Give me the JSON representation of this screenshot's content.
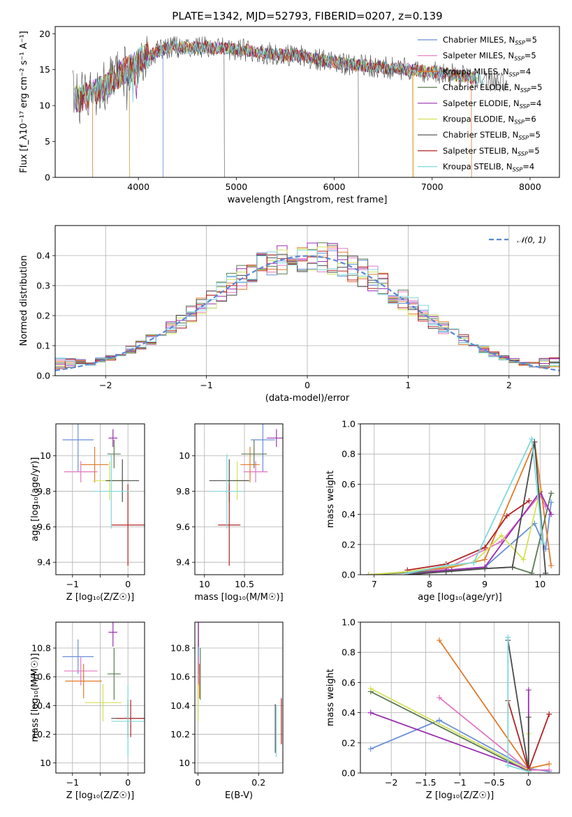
{
  "palette": [
    "#6a8fd8",
    "#e377c2",
    "#e07b2c",
    "#5a7a52",
    "#9a2fb0",
    "#d4e157",
    "#4a4a4a",
    "#b22222",
    "#80d8dc"
  ],
  "chart_data": [
    {
      "id": "spectrum",
      "type": "line",
      "title": "PLATE=1342, MJD=52793, FIBERID=0207, z=0.139",
      "xlabel": "wavelength [Angstrom, rest frame]",
      "ylabel": "Flux [f_λ10⁻¹⁷ erg cm⁻² s⁻¹ A⁻¹]",
      "xlim": [
        3150,
        8300
      ],
      "ylim": [
        0,
        21
      ],
      "xticks": [
        4000,
        5000,
        6000,
        7000,
        8000
      ],
      "yticks": [
        0,
        5,
        10,
        15,
        20
      ],
      "grid": false,
      "legend_position": "top-right",
      "envelope": {
        "x": [
          3350,
          3450,
          3550,
          3650,
          3750,
          3850,
          3950,
          4050,
          4150,
          4250,
          4350,
          4500,
          4700,
          4900,
          5100,
          5300,
          5500,
          5700,
          5900,
          6100,
          6300,
          6500,
          6700,
          6900,
          7100,
          7300,
          7500,
          7700,
          7900,
          8050
        ],
        "y": [
          10.8,
          11.2,
          11.8,
          12.5,
          13.8,
          14.8,
          15.5,
          16.6,
          17.2,
          17.8,
          18.3,
          18.0,
          18.1,
          17.9,
          17.7,
          17.3,
          17.0,
          16.8,
          16.2,
          15.8,
          15.6,
          15.3,
          15.1,
          14.8,
          14.5,
          14.1,
          13.7,
          13.2,
          12.8,
          12.4
        ]
      },
      "series": [
        {
          "name": "Chabrier MILES, N_SSP=5"
        },
        {
          "name": "Salpeter MILES, N_SSP=5"
        },
        {
          "name": "Kroupa MILES, N_SSP=4"
        },
        {
          "name": "Chabrier ELODIE, N_SSP=5"
        },
        {
          "name": "Salpeter ELODIE, N_SSP=4"
        },
        {
          "name": "Kroupa ELODIE, N_SSP=6"
        },
        {
          "name": "Chabrier STELIB, N_SSP=5"
        },
        {
          "name": "Salpeter STELIB, N_SSP=5"
        },
        {
          "name": "Kroupa STELIB, N_SSP=4"
        }
      ]
    },
    {
      "id": "residuals",
      "type": "line",
      "xlabel": "(data-model)/error",
      "ylabel": "Normed distribution",
      "xlim": [
        -2.5,
        2.5
      ],
      "ylim": [
        0,
        0.5
      ],
      "xticks": [
        -2,
        -1,
        0,
        1,
        2
      ],
      "yticks": [
        0.0,
        0.1,
        0.2,
        0.3,
        0.4
      ],
      "grid": true,
      "legend_position": "top-right",
      "legend_label": "𝒩(0, 1)",
      "bin_width": 0.1
    },
    {
      "id": "age_vs_Z",
      "type": "scatter",
      "xlabel": "Z [log₁₀(Z/Z☉)]",
      "ylabel": "age  [log₁₀(age/yr)]",
      "xlim": [
        -1.3,
        0.3
      ],
      "ylim": [
        9.33,
        10.18
      ],
      "xticks": [
        -1,
        -0.5,
        0
      ],
      "xticklabels": [
        "−1",
        "",
        "0"
      ],
      "yticks": [
        9.4,
        9.6,
        9.8,
        10.0
      ],
      "grid": true,
      "points": [
        {
          "x": -0.9,
          "xerr": 0.28,
          "y": 10.09,
          "yerr": 0.18
        },
        {
          "x": -0.85,
          "xerr": 0.3,
          "y": 9.91,
          "yerr": 0.06
        },
        {
          "x": -0.6,
          "xerr": 0.25,
          "y": 9.95,
          "yerr": 0.1
        },
        {
          "x": -0.25,
          "xerr": 0.12,
          "y": 10.01,
          "yerr": 0.08
        },
        {
          "x": -0.27,
          "xerr": 0.08,
          "y": 10.1,
          "yerr": 0.05
        },
        {
          "x": -0.33,
          "xerr": 0.3,
          "y": 9.86,
          "yerr": 0.11
        },
        {
          "x": -0.1,
          "xerr": 0.3,
          "y": 9.86,
          "yerr": 0.12
        },
        {
          "x": 0.0,
          "xerr": 0.3,
          "y": 9.61,
          "yerr": 0.23
        },
        {
          "x": -0.3,
          "xerr": 0.33,
          "y": 9.8,
          "yerr": 0.21
        }
      ]
    },
    {
      "id": "age_vs_mass",
      "type": "scatter",
      "xlabel": "mass [log₁₀(M/M☉)]",
      "xlim": [
        9.88,
        10.98
      ],
      "ylim": [
        9.33,
        10.18
      ],
      "xticks": [
        10.0,
        10.5
      ],
      "yticks": [
        9.4,
        9.6,
        9.8,
        10.0
      ],
      "grid": true,
      "points": [
        {
          "x": 10.73,
          "xerr": 0.15,
          "y": 10.09,
          "yerr": 0.18
        },
        {
          "x": 10.64,
          "xerr": 0.15,
          "y": 9.91,
          "yerr": 0.06
        },
        {
          "x": 10.57,
          "xerr": 0.12,
          "y": 9.95,
          "yerr": 0.1
        },
        {
          "x": 10.62,
          "xerr": 0.16,
          "y": 10.01,
          "yerr": 0.08
        },
        {
          "x": 10.9,
          "xerr": 0.12,
          "y": 10.1,
          "yerr": 0.05
        },
        {
          "x": 10.41,
          "xerr": 0.14,
          "y": 9.86,
          "yerr": 0.11
        },
        {
          "x": 10.31,
          "xerr": 0.25,
          "y": 9.86,
          "yerr": 0.12
        },
        {
          "x": 10.31,
          "xerr": 0.14,
          "y": 9.61,
          "yerr": 0.23
        },
        {
          "x": 10.28,
          "xerr": 0.2,
          "y": 9.8,
          "yerr": 0.21
        }
      ]
    },
    {
      "id": "weight_vs_age",
      "type": "line",
      "xlabel": "age  [log₁₀(age/yr)]",
      "ylabel": "mass weight",
      "xlim": [
        6.75,
        10.35
      ],
      "ylim": [
        0,
        1.0
      ],
      "xticks": [
        7,
        8,
        9,
        10
      ],
      "yticks": [
        0.0,
        0.2,
        0.4,
        0.6,
        0.8,
        1.0
      ],
      "grid": true,
      "series": [
        {
          "x": [
            7.6,
            9.0,
            9.9,
            10.1,
            10.2
          ],
          "y": [
            0.01,
            0.05,
            0.34,
            0.17,
            0.48
          ]
        },
        {
          "x": [
            6.9,
            8.3,
            9.3,
            10.0,
            10.1
          ],
          "y": [
            0.0,
            0.04,
            0.22,
            0.53,
            0.45
          ]
        },
        {
          "x": [
            7.6,
            8.4,
            9.0,
            9.9,
            10.2
          ],
          "y": [
            0.02,
            0.05,
            0.1,
            0.88,
            0.06
          ]
        },
        {
          "x": [
            6.9,
            8.4,
            9.5,
            9.85,
            10.2
          ],
          "y": [
            0.0,
            0.03,
            0.05,
            0.01,
            0.54
          ]
        },
        {
          "x": [
            7.6,
            8.3,
            9.0,
            10.0,
            10.2
          ],
          "y": [
            0.0,
            0.03,
            0.05,
            0.55,
            0.4
          ]
        },
        {
          "x": [
            6.9,
            7.6,
            8.8,
            9.3,
            9.7,
            10.0
          ],
          "y": [
            0.0,
            0.02,
            0.08,
            0.26,
            0.1,
            0.56
          ]
        },
        {
          "x": [
            7.6,
            8.3,
            9.0,
            9.5,
            9.9,
            10.1
          ],
          "y": [
            0.0,
            0.02,
            0.04,
            0.05,
            0.88,
            0.01
          ]
        },
        {
          "x": [
            7.6,
            8.3,
            9.0,
            9.4,
            9.8
          ],
          "y": [
            0.03,
            0.07,
            0.18,
            0.39,
            0.49
          ]
        },
        {
          "x": [
            7.6,
            8.3,
            8.8,
            9.85,
            10.05
          ],
          "y": [
            0.01,
            0.06,
            0.08,
            0.9,
            0.21
          ]
        }
      ]
    },
    {
      "id": "mass_vs_Z",
      "type": "scatter",
      "xlabel": "Z [log₁₀(Z/Z☉)]",
      "ylabel": "mass [log₁₀(M/M☉)]",
      "xlim": [
        -1.3,
        0.3
      ],
      "ylim": [
        9.93,
        10.98
      ],
      "xticks": [
        -1,
        -0.5,
        0
      ],
      "xticklabels": [
        "−1",
        "",
        "0"
      ],
      "yticks": [
        10.0,
        10.2,
        10.4,
        10.6,
        10.8
      ],
      "grid": true,
      "points": [
        {
          "x": -0.9,
          "xerr": 0.28,
          "y": 10.74,
          "yerr": 0.12
        },
        {
          "x": -0.85,
          "xerr": 0.3,
          "y": 10.64,
          "yerr": 0.1
        },
        {
          "x": -0.8,
          "xerr": 0.33,
          "y": 10.57,
          "yerr": 0.12
        },
        {
          "x": -0.25,
          "xerr": 0.12,
          "y": 10.62,
          "yerr": 0.18
        },
        {
          "x": -0.27,
          "xerr": 0.08,
          "y": 10.91,
          "yerr": 0.1
        },
        {
          "x": -0.45,
          "xerr": 0.33,
          "y": 10.42,
          "yerr": 0.13
        },
        {
          "x": 0.0,
          "xerr": 0.3,
          "y": 10.31,
          "yerr": 0.13
        },
        {
          "x": 0.05,
          "xerr": 0.25,
          "y": 10.31,
          "yerr": 0.13
        },
        {
          "x": 0.0,
          "xerr": 0.3,
          "y": 10.29,
          "yerr": 0.25
        }
      ]
    },
    {
      "id": "mass_vs_ebv",
      "type": "scatter",
      "xlabel": "E(B-V)",
      "xlim": [
        -0.01,
        0.28
      ],
      "ylim": [
        9.93,
        10.98
      ],
      "xticks": [
        0.0,
        0.2
      ],
      "yticks": [
        10.0,
        10.2,
        10.4,
        10.6,
        10.8
      ],
      "grid": true,
      "points": [
        {
          "x": 0.002,
          "y": 10.74,
          "yerr": 0.12
        },
        {
          "x": 0.002,
          "y": 10.64,
          "yerr": 0.1
        },
        {
          "x": 0.005,
          "y": 10.57,
          "yerr": 0.12
        },
        {
          "x": 0.008,
          "y": 10.62,
          "yerr": 0.18
        },
        {
          "x": 0.002,
          "y": 10.91,
          "yerr": 0.1
        },
        {
          "x": 0.001,
          "y": 10.42,
          "yerr": 0.13
        },
        {
          "x": 0.255,
          "y": 10.24,
          "yerr": 0.17
        },
        {
          "x": 0.275,
          "y": 10.29,
          "yerr": 0.16
        },
        {
          "x": 0.258,
          "y": 10.22,
          "yerr": 0.18
        }
      ]
    },
    {
      "id": "weight_vs_Z",
      "type": "line",
      "xlabel": "Z [log₁₀(Z/Z☉)]",
      "ylabel": "mass weight",
      "xlim": [
        -2.45,
        0.45
      ],
      "ylim": [
        0,
        1.0
      ],
      "xticks": [
        -2.0,
        -1.5,
        -1.0,
        -0.5,
        0.0
      ],
      "yticks": [
        0.0,
        0.2,
        0.4,
        0.6,
        0.8,
        1.0
      ],
      "grid": true,
      "series": [
        {
          "x": [
            -2.3,
            -1.3,
            0.0,
            0.3
          ],
          "y": [
            0.16,
            0.35,
            0.03,
            0.01
          ]
        },
        {
          "x": [
            -1.3,
            0.0,
            0.3
          ],
          "y": [
            0.5,
            0.02,
            0.02
          ]
        },
        {
          "x": [
            -1.3,
            0.0,
            0.3
          ],
          "y": [
            0.88,
            0.03,
            0.06
          ]
        },
        {
          "x": [
            -2.3,
            0.0
          ],
          "y": [
            0.54,
            0.01
          ]
        },
        {
          "x": [
            -2.3,
            0.0,
            0.0
          ],
          "y": [
            0.4,
            0.02,
            0.55
          ]
        },
        {
          "x": [
            -2.3,
            0.0,
            0.0
          ],
          "y": [
            0.56,
            0.02,
            0.26
          ]
        },
        {
          "x": [
            -0.3,
            0.0,
            0.0
          ],
          "y": [
            0.88,
            0.02,
            0.37
          ]
        },
        {
          "x": [
            -0.3,
            0.0,
            0.3
          ],
          "y": [
            0.48,
            0.02,
            0.39
          ]
        },
        {
          "x": [
            -0.3,
            -0.3,
            0.0
          ],
          "y": [
            0.9,
            0.05,
            0.01
          ]
        }
      ]
    }
  ]
}
